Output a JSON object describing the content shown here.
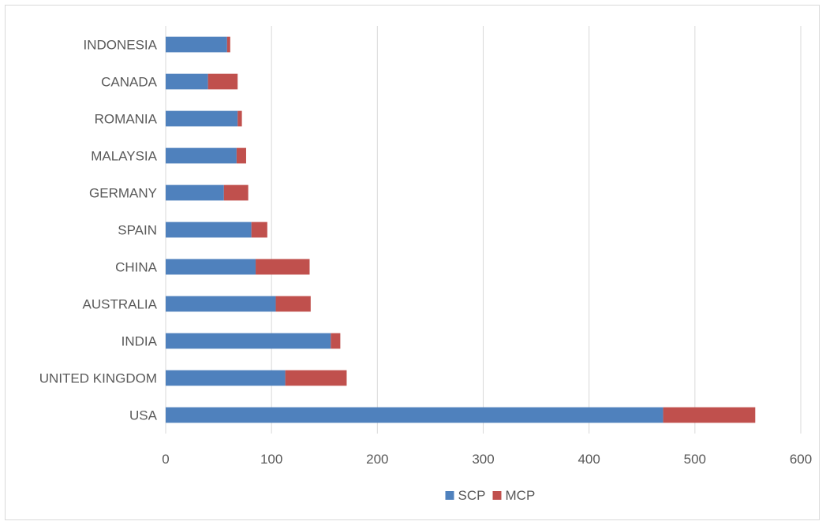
{
  "chart_data": {
    "type": "bar",
    "orientation": "horizontal",
    "stacked": true,
    "title": "",
    "xlabel": "",
    "ylabel": "",
    "categories": [
      "USA",
      "UNITED KINGDOM",
      "INDIA",
      "AUSTRALIA",
      "CHINA",
      "SPAIN",
      "GERMANY",
      "MALAYSIA",
      "ROMANIA",
      "CANADA",
      "INDONESIA"
    ],
    "series": [
      {
        "name": "SCP",
        "color": "#4f81bd",
        "values": [
          470,
          113,
          156,
          104,
          85,
          81,
          55,
          67,
          68,
          40,
          58
        ]
      },
      {
        "name": "MCP",
        "color": "#c0504d",
        "values": [
          87,
          58,
          9,
          33,
          51,
          15,
          23,
          9,
          4,
          28,
          3
        ]
      }
    ],
    "xlim": [
      0,
      600
    ],
    "xticks": [
      "0",
      "100",
      "200",
      "300",
      "400",
      "500",
      "600"
    ],
    "grid": true,
    "legend_position": "bottom"
  }
}
